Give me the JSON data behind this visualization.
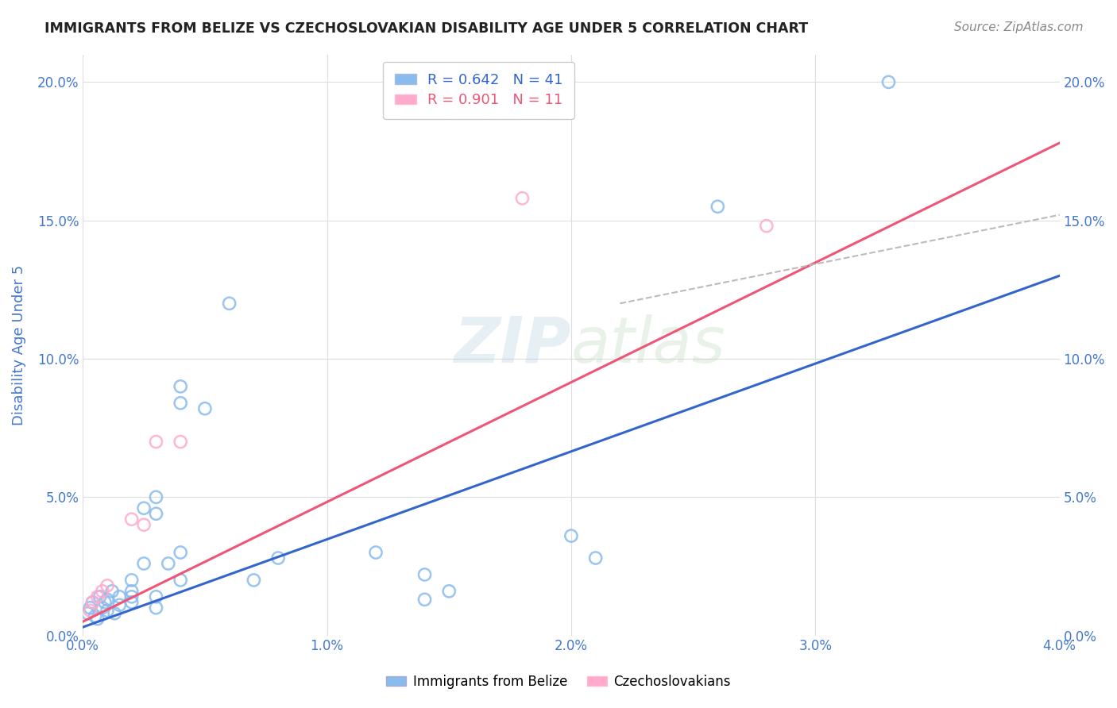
{
  "title": "IMMIGRANTS FROM BELIZE VS CZECHOSLOVAKIAN DISABILITY AGE UNDER 5 CORRELATION CHART",
  "source": "Source: ZipAtlas.com",
  "ylabel": "Disability Age Under 5",
  "xlim": [
    0.0,
    0.04
  ],
  "ylim": [
    0.0,
    0.21
  ],
  "x_ticks": [
    0.0,
    0.01,
    0.02,
    0.03,
    0.04
  ],
  "y_ticks": [
    0.0,
    0.05,
    0.1,
    0.15,
    0.2
  ],
  "blue_scatter": [
    [
      0.0002,
      0.008
    ],
    [
      0.0003,
      0.01
    ],
    [
      0.0004,
      0.012
    ],
    [
      0.0005,
      0.007
    ],
    [
      0.0006,
      0.006
    ],
    [
      0.0007,
      0.014
    ],
    [
      0.0008,
      0.01
    ],
    [
      0.0009,
      0.012
    ],
    [
      0.001,
      0.009
    ],
    [
      0.001,
      0.013
    ],
    [
      0.0012,
      0.016
    ],
    [
      0.0013,
      0.008
    ],
    [
      0.0015,
      0.011
    ],
    [
      0.0015,
      0.014
    ],
    [
      0.002,
      0.02
    ],
    [
      0.002,
      0.016
    ],
    [
      0.002,
      0.014
    ],
    [
      0.002,
      0.012
    ],
    [
      0.0025,
      0.026
    ],
    [
      0.0025,
      0.046
    ],
    [
      0.003,
      0.05
    ],
    [
      0.003,
      0.044
    ],
    [
      0.003,
      0.014
    ],
    [
      0.003,
      0.01
    ],
    [
      0.0035,
      0.026
    ],
    [
      0.004,
      0.084
    ],
    [
      0.004,
      0.09
    ],
    [
      0.004,
      0.03
    ],
    [
      0.004,
      0.02
    ],
    [
      0.005,
      0.082
    ],
    [
      0.006,
      0.12
    ],
    [
      0.007,
      0.02
    ],
    [
      0.008,
      0.028
    ],
    [
      0.012,
      0.03
    ],
    [
      0.014,
      0.022
    ],
    [
      0.014,
      0.013
    ],
    [
      0.015,
      0.016
    ],
    [
      0.02,
      0.036
    ],
    [
      0.021,
      0.028
    ],
    [
      0.026,
      0.155
    ],
    [
      0.033,
      0.2
    ]
  ],
  "pink_scatter": [
    [
      0.0003,
      0.009
    ],
    [
      0.0004,
      0.012
    ],
    [
      0.0006,
      0.014
    ],
    [
      0.0008,
      0.016
    ],
    [
      0.001,
      0.018
    ],
    [
      0.002,
      0.042
    ],
    [
      0.0025,
      0.04
    ],
    [
      0.003,
      0.07
    ],
    [
      0.004,
      0.07
    ],
    [
      0.018,
      0.158
    ],
    [
      0.028,
      0.148
    ]
  ],
  "blue_line_x": [
    0.0,
    0.04
  ],
  "blue_line_y": [
    0.003,
    0.13
  ],
  "pink_line_x": [
    0.0,
    0.04
  ],
  "pink_line_y": [
    0.005,
    0.178
  ],
  "dashed_line_x": [
    0.022,
    0.04
  ],
  "dashed_line_y": [
    0.12,
    0.152
  ],
  "scatter_color_blue": "#88BBEE",
  "scatter_color_pink": "#FFAACC",
  "line_color_blue": "#3366CC",
  "line_color_pink": "#EE5577",
  "dashed_line_color": "#BBBBBB",
  "background_color": "#FFFFFF",
  "grid_color": "#DDDDDD",
  "title_color": "#222222",
  "axis_label_color": "#4477CC",
  "tick_label_color": "#4477CC",
  "watermark_color": "#BBDDEE"
}
